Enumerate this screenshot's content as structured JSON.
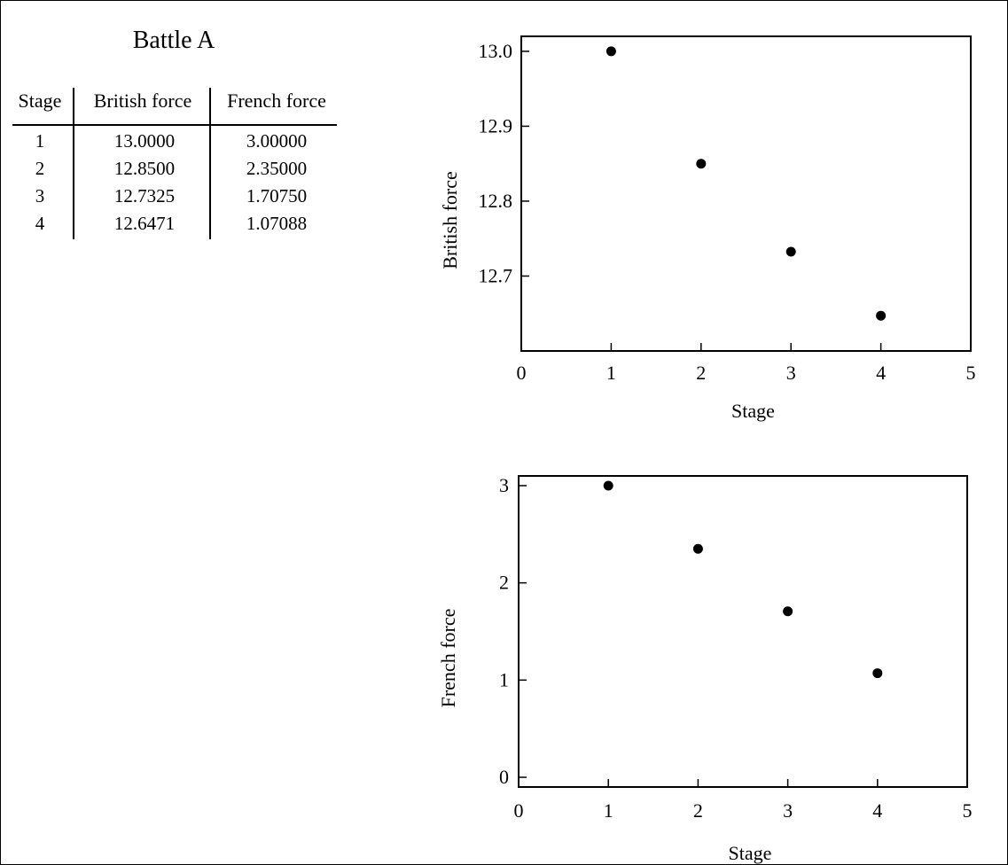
{
  "table": {
    "title": "Battle A",
    "headers": [
      "Stage",
      "British force",
      "French force"
    ],
    "rows": [
      [
        "1",
        "13.0000",
        "3.00000"
      ],
      [
        "2",
        "12.8500",
        "2.35000"
      ],
      [
        "3",
        "12.7325",
        "1.70750"
      ],
      [
        "4",
        "12.6471",
        "1.07088"
      ]
    ]
  },
  "chart_data": [
    {
      "type": "scatter",
      "xlabel": "Stage",
      "ylabel": "British force",
      "x": [
        1,
        2,
        3,
        4
      ],
      "y": [
        13.0,
        12.85,
        12.7325,
        12.6471
      ],
      "xlim": [
        0,
        5
      ],
      "ylim": [
        12.6,
        13.02
      ],
      "xticks": [
        "0",
        "1",
        "2",
        "3",
        "4",
        "5"
      ],
      "yticks": [
        "12.7",
        "12.8",
        "12.9",
        "13.0"
      ],
      "grid": false
    },
    {
      "type": "scatter",
      "xlabel": "Stage",
      "ylabel": "French force",
      "x": [
        1,
        2,
        3,
        4
      ],
      "y": [
        3.0,
        2.35,
        1.7075,
        1.07088
      ],
      "xlim": [
        0,
        5
      ],
      "ylim": [
        -0.1,
        3.1
      ],
      "xticks": [
        "0",
        "1",
        "2",
        "3",
        "4",
        "5"
      ],
      "yticks": [
        "0",
        "1",
        "2",
        "3"
      ],
      "grid": false
    }
  ]
}
